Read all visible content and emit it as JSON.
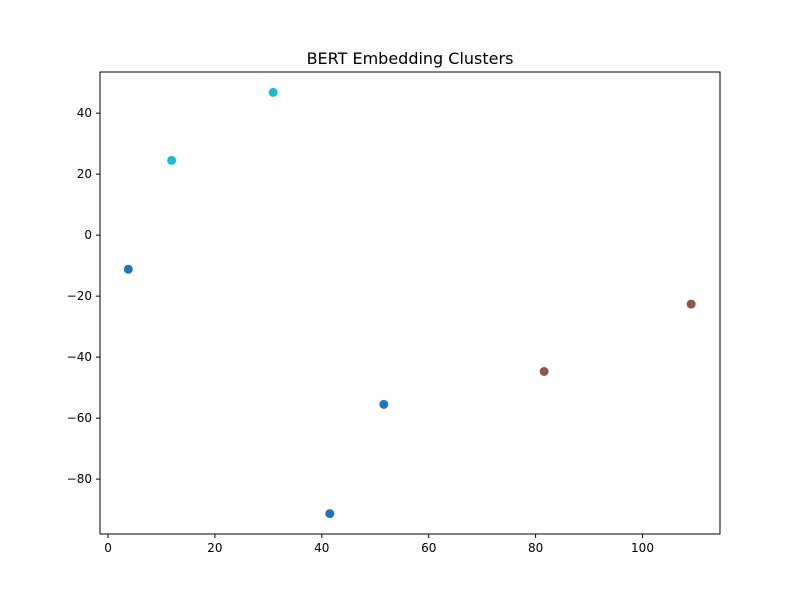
{
  "chart_data": {
    "type": "scatter",
    "title": "BERT Embedding Clusters",
    "xlabel": "",
    "ylabel": "",
    "xlim": [
      -1.5,
      114.5
    ],
    "ylim": [
      -98,
      53.5
    ],
    "xticks": [
      0,
      20,
      40,
      60,
      80,
      100
    ],
    "yticks": [
      -80,
      -60,
      -40,
      -20,
      0,
      20,
      40
    ],
    "xtick_labels": [
      "0",
      "20",
      "40",
      "60",
      "80",
      "100"
    ],
    "ytick_labels": [
      "−80",
      "−60",
      "−40",
      "−20",
      "0",
      "20",
      "40"
    ],
    "grid": false,
    "legend": "none",
    "points": [
      {
        "x": 3.8,
        "y": -11.2,
        "color": "#1f77b4"
      },
      {
        "x": 11.9,
        "y": 24.5,
        "color": "#17becf"
      },
      {
        "x": 30.9,
        "y": 46.8,
        "color": "#17becf"
      },
      {
        "x": 41.5,
        "y": -91.3,
        "color": "#1f77b4"
      },
      {
        "x": 51.6,
        "y": -55.5,
        "color": "#1f77b4"
      },
      {
        "x": 81.6,
        "y": -44.7,
        "color": "#8c564b"
      },
      {
        "x": 109.1,
        "y": -22.6,
        "color": "#8c564b"
      }
    ]
  }
}
